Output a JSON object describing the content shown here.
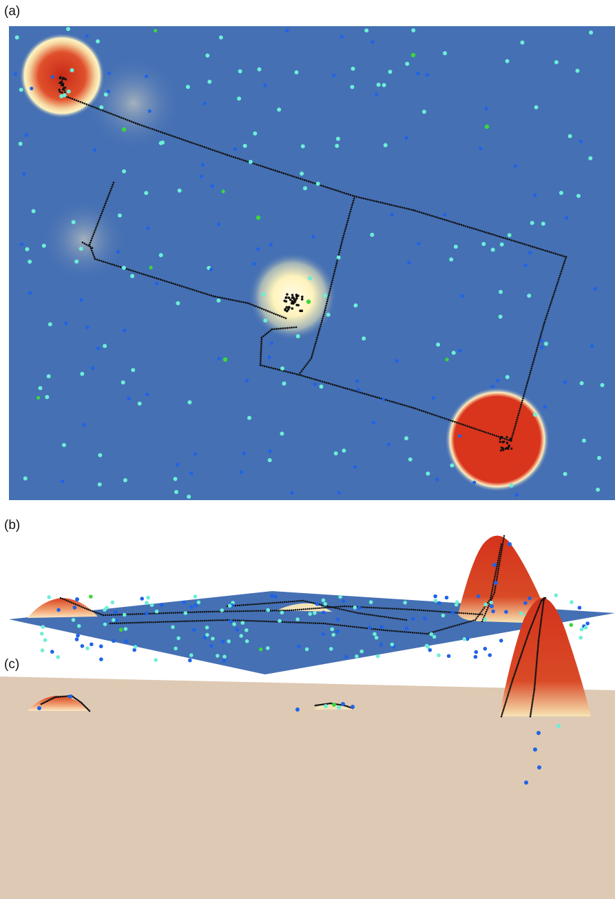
{
  "panels": {
    "a": {
      "label": "(a)"
    },
    "b": {
      "label": "(b)"
    },
    "c": {
      "label": "(c)"
    }
  },
  "colors": {
    "map_background": "#4570b4",
    "ground_plane": "#dec9b4",
    "hotspot_high": "#d6341c",
    "hotspot_low": "#fff3bc",
    "trajectory": "#111111",
    "point_light": "#6cefd6",
    "point_blue": "#1e63e8",
    "point_green": "#3ad83a"
  }
}
